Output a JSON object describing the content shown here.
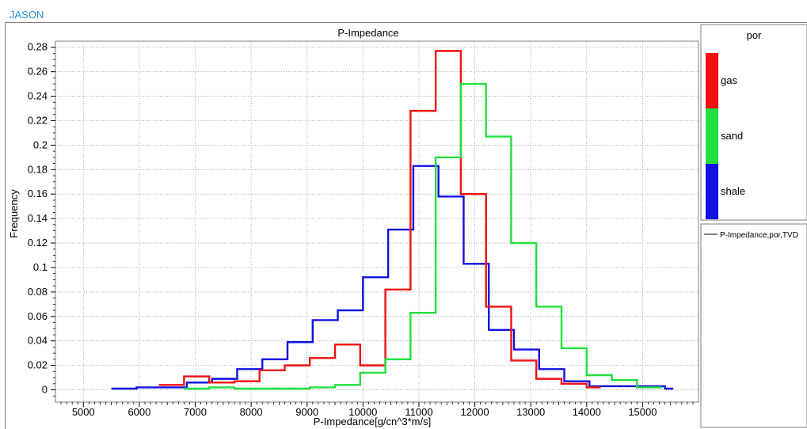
{
  "header": {
    "brand": "JASON"
  },
  "chart_data": {
    "type": "line",
    "title": "P-Impedance",
    "xlabel": "P-Impedance[g/cn^3*m/s]",
    "ylabel": "Frequency",
    "xlim": [
      4500,
      16000
    ],
    "ylim": [
      -0.01,
      0.285
    ],
    "x_ticks": [
      5000,
      6000,
      7000,
      8000,
      9000,
      10000,
      11000,
      12000,
      13000,
      14000,
      15000
    ],
    "y_ticks": [
      0,
      0.02,
      0.04,
      0.06,
      0.08,
      0.1,
      0.12,
      0.14,
      0.16,
      0.18,
      0.2,
      0.22,
      0.24,
      0.26,
      0.28
    ],
    "y_tick_labels": [
      "0",
      "0.02",
      "0.04",
      "0.06",
      "0.08",
      "0.1",
      "0.12",
      "0.14",
      "0.16",
      "0.18",
      "0.2",
      "0.22",
      "0.24",
      "0.26",
      "0.28"
    ],
    "grid": true,
    "style": "step",
    "series": [
      {
        "name": "shale",
        "color": "#1010e0",
        "edges": [
          5500,
          5950,
          6400,
          6850,
          7300,
          7750,
          8200,
          8650,
          9100,
          9550,
          10000,
          10450,
          10900,
          11350,
          11800,
          12250,
          12700,
          13150,
          13600,
          14050,
          14500,
          14950,
          15400,
          15550
        ],
        "values": [
          0.001,
          0.002,
          0.002,
          0.006,
          0.009,
          0.017,
          0.025,
          0.039,
          0.057,
          0.065,
          0.092,
          0.131,
          0.183,
          0.158,
          0.103,
          0.049,
          0.033,
          0.017,
          0.007,
          0.003,
          0.003,
          0.003,
          0.001
        ]
      },
      {
        "name": "gas",
        "color": "#f01010",
        "edges": [
          6350,
          6800,
          7250,
          7700,
          8150,
          8600,
          9050,
          9500,
          9950,
          10400,
          10850,
          11300,
          11750,
          12200,
          12650,
          13100,
          13550,
          14000,
          14250
        ],
        "values": [
          0.004,
          0.011,
          0.006,
          0.007,
          0.016,
          0.02,
          0.026,
          0.037,
          0.02,
          0.082,
          0.228,
          0.277,
          0.16,
          0.068,
          0.024,
          0.009,
          0.005,
          0.002
        ]
      },
      {
        "name": "sand",
        "color": "#20e040",
        "edges": [
          6800,
          7250,
          7700,
          8150,
          8600,
          9050,
          9500,
          9950,
          10400,
          10850,
          11300,
          11750,
          12200,
          12650,
          13100,
          13550,
          14000,
          14450,
          14900,
          15350
        ],
        "values": [
          0.001,
          0.002,
          0.001,
          0.001,
          0.001,
          0.002,
          0.004,
          0.014,
          0.025,
          0.063,
          0.19,
          0.25,
          0.207,
          0.12,
          0.068,
          0.034,
          0.012,
          0.008,
          0.002
        ]
      }
    ],
    "colorbar": {
      "title": "por",
      "entries": [
        {
          "label": "gas",
          "color": "#f01010"
        },
        {
          "label": "sand",
          "color": "#20e040"
        },
        {
          "label": "shale",
          "color": "#1010e0"
        }
      ]
    },
    "legend": {
      "placement": "right",
      "entries": [
        {
          "label": "P-Impedance,por,TVD",
          "color": "#000000"
        }
      ]
    }
  }
}
